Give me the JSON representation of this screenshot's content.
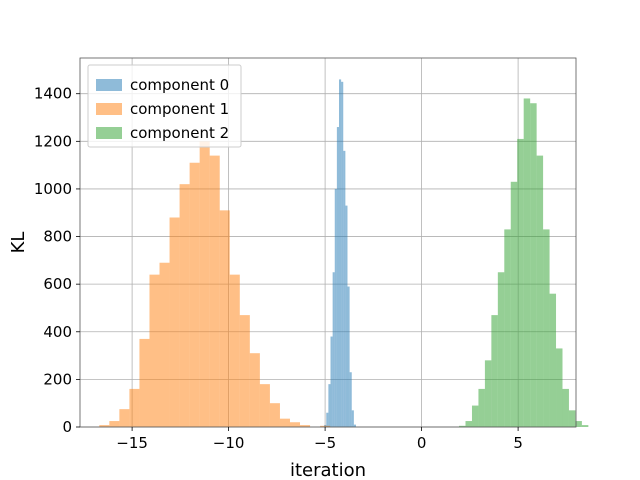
{
  "chart_data": {
    "type": "bar",
    "title": "",
    "xlabel": "iteration",
    "ylabel": "KL",
    "xlim": [
      -17.7,
      8.0
    ],
    "ylim": [
      0,
      1550
    ],
    "grid": true,
    "legend_position": "upper-left",
    "xticks": [
      {
        "value": -15,
        "label": "−15"
      },
      {
        "value": -10,
        "label": "−10"
      },
      {
        "value": -5,
        "label": "−5"
      },
      {
        "value": 0,
        "label": "0"
      },
      {
        "value": 5,
        "label": "5"
      }
    ],
    "yticks": [
      {
        "value": 0,
        "label": "0"
      },
      {
        "value": 200,
        "label": "200"
      },
      {
        "value": 400,
        "label": "400"
      },
      {
        "value": 600,
        "label": "600"
      },
      {
        "value": 800,
        "label": "800"
      },
      {
        "value": 1000,
        "label": "1000"
      },
      {
        "value": 1200,
        "label": "1200"
      },
      {
        "value": 1400,
        "label": "1400"
      }
    ],
    "series": [
      {
        "name": "component 0",
        "color": "#1f77b4",
        "opacity": 0.5,
        "bin_start": -5.05,
        "bin_width": 0.11,
        "values": [
          8,
          60,
          180,
          380,
          650,
          1000,
          1260,
          1460,
          1450,
          1160,
          930,
          590,
          230,
          70,
          10
        ]
      },
      {
        "name": "component 1",
        "color": "#ff7f0e",
        "opacity": 0.5,
        "bin_start": -16.7,
        "bin_width": 0.52,
        "values": [
          8,
          25,
          75,
          160,
          370,
          640,
          690,
          880,
          1020,
          1110,
          1200,
          1140,
          910,
          640,
          470,
          310,
          180,
          100,
          35,
          20,
          8,
          0,
          5
        ]
      },
      {
        "name": "component 2",
        "color": "#2ca02c",
        "opacity": 0.5,
        "bin_start": 1.94,
        "bin_width": 0.335,
        "values": [
          5,
          25,
          90,
          160,
          280,
          470,
          650,
          830,
          1030,
          1210,
          1380,
          1360,
          1140,
          830,
          560,
          330,
          160,
          70,
          25,
          8
        ]
      }
    ]
  }
}
